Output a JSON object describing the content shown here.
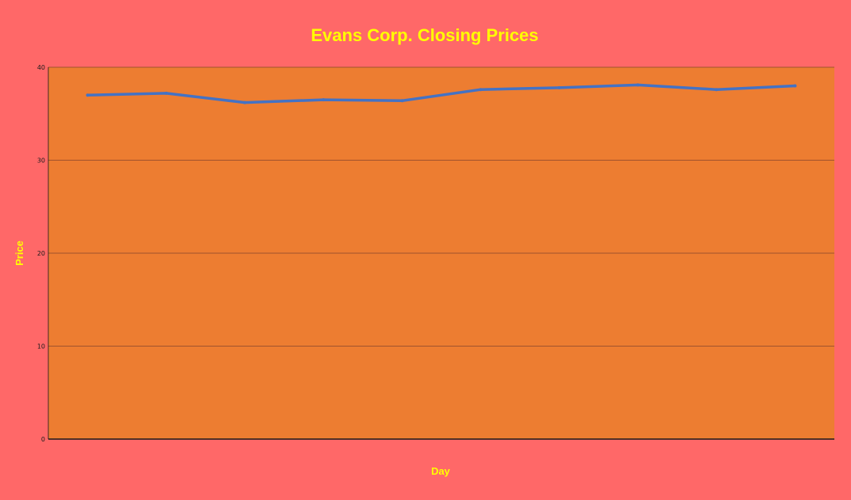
{
  "colors": {
    "background": "#FF6868",
    "plot_area": "#ED7D31",
    "line": "#4472C4",
    "gridline": "#A0522D",
    "axis": "#1A1A1A",
    "title": "#FFFF00",
    "tick_text": "#1A1A1A"
  },
  "chart_data": {
    "type": "line",
    "title": "Evans Corp. Closing Prices",
    "xlabel": "Day",
    "ylabel": "Price",
    "ylim": [
      0,
      40
    ],
    "yticks": [
      0,
      10,
      20,
      30,
      40
    ],
    "y_tick_labels": [
      "0",
      "10",
      "20",
      "30",
      "40"
    ],
    "grid": true,
    "legend": "none",
    "x": [
      1,
      2,
      3,
      4,
      5,
      6,
      7,
      8,
      9,
      10
    ],
    "series": [
      {
        "values": [
          37.0,
          37.2,
          36.2,
          36.5,
          36.4,
          37.6,
          37.8,
          38.1,
          37.6,
          38.0
        ]
      }
    ]
  }
}
